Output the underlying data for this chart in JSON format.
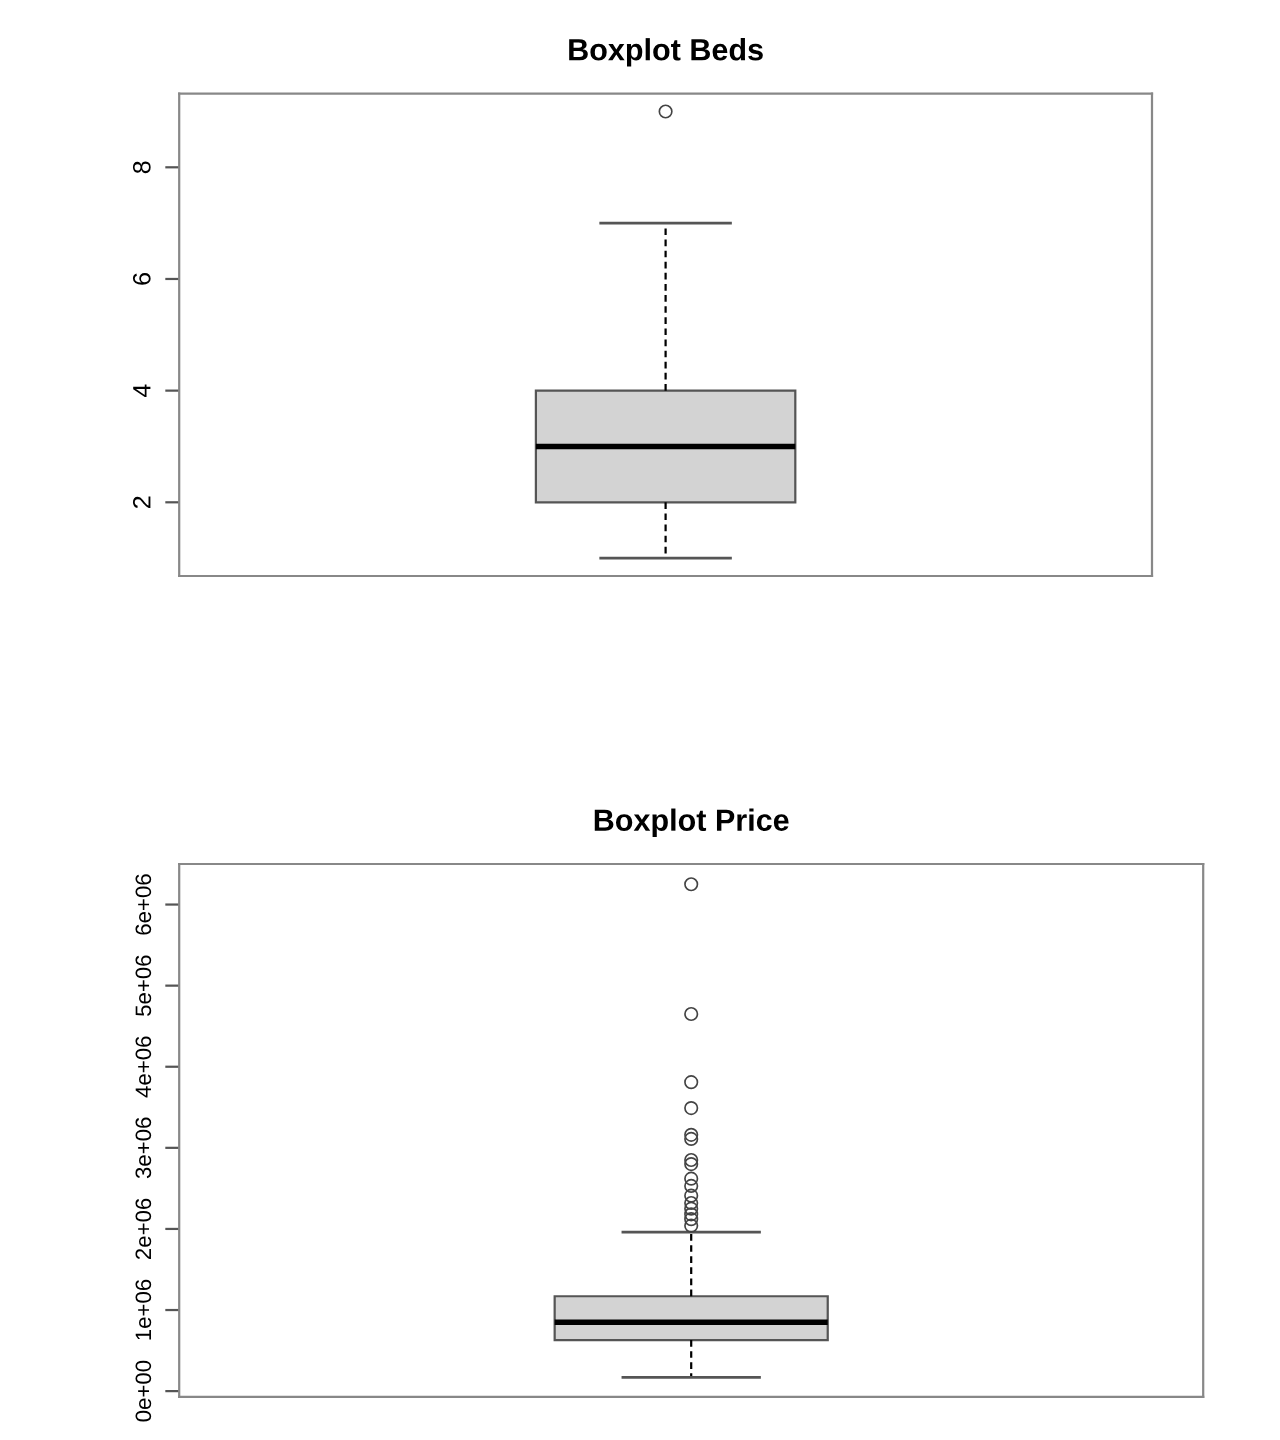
{
  "chart_data": [
    {
      "type": "box",
      "title": "Boxplot Beds",
      "categories": [
        null
      ],
      "color": "#d3d3d3",
      "ylim": [
        0.68,
        9.32
      ],
      "yticks": [
        2,
        4,
        6,
        8
      ],
      "grid": false,
      "tick_labels": "y",
      "boxes": [
        {
          "low": 1,
          "q1": 2,
          "median": 3,
          "q3": 4,
          "high": 7,
          "outliers": [
            9
          ]
        }
      ]
    },
    {
      "type": "box",
      "title": "Boxplot Price",
      "categories": [
        null
      ],
      "color": "#d3d3d3",
      "ylim": [
        -70000,
        6500000
      ],
      "yticks": [
        {
          "value": 0,
          "label": "0e+00"
        },
        {
          "value": 1000000,
          "label": "1e+06"
        },
        {
          "value": 2000000,
          "label": "2e+06"
        },
        {
          "value": 3000000,
          "label": "3e+06"
        },
        {
          "value": 4000000,
          "label": "4e+06"
        },
        {
          "value": 5000000,
          "label": "5e+06"
        },
        {
          "value": 6000000,
          "label": "6e+06"
        }
      ],
      "grid": false,
      "tick_labels": "y",
      "boxes": [
        {
          "low": 170000,
          "q1": 630000,
          "median": 850000,
          "q3": 1170000,
          "high": 1960000,
          "outliers": [
            6250000,
            4650000,
            3810000,
            3490000,
            3160000,
            3110000,
            2850000,
            2800000,
            2620000,
            2530000,
            2410000,
            2320000,
            2250000,
            2180000,
            2120000,
            2040000
          ]
        }
      ]
    }
  ]
}
